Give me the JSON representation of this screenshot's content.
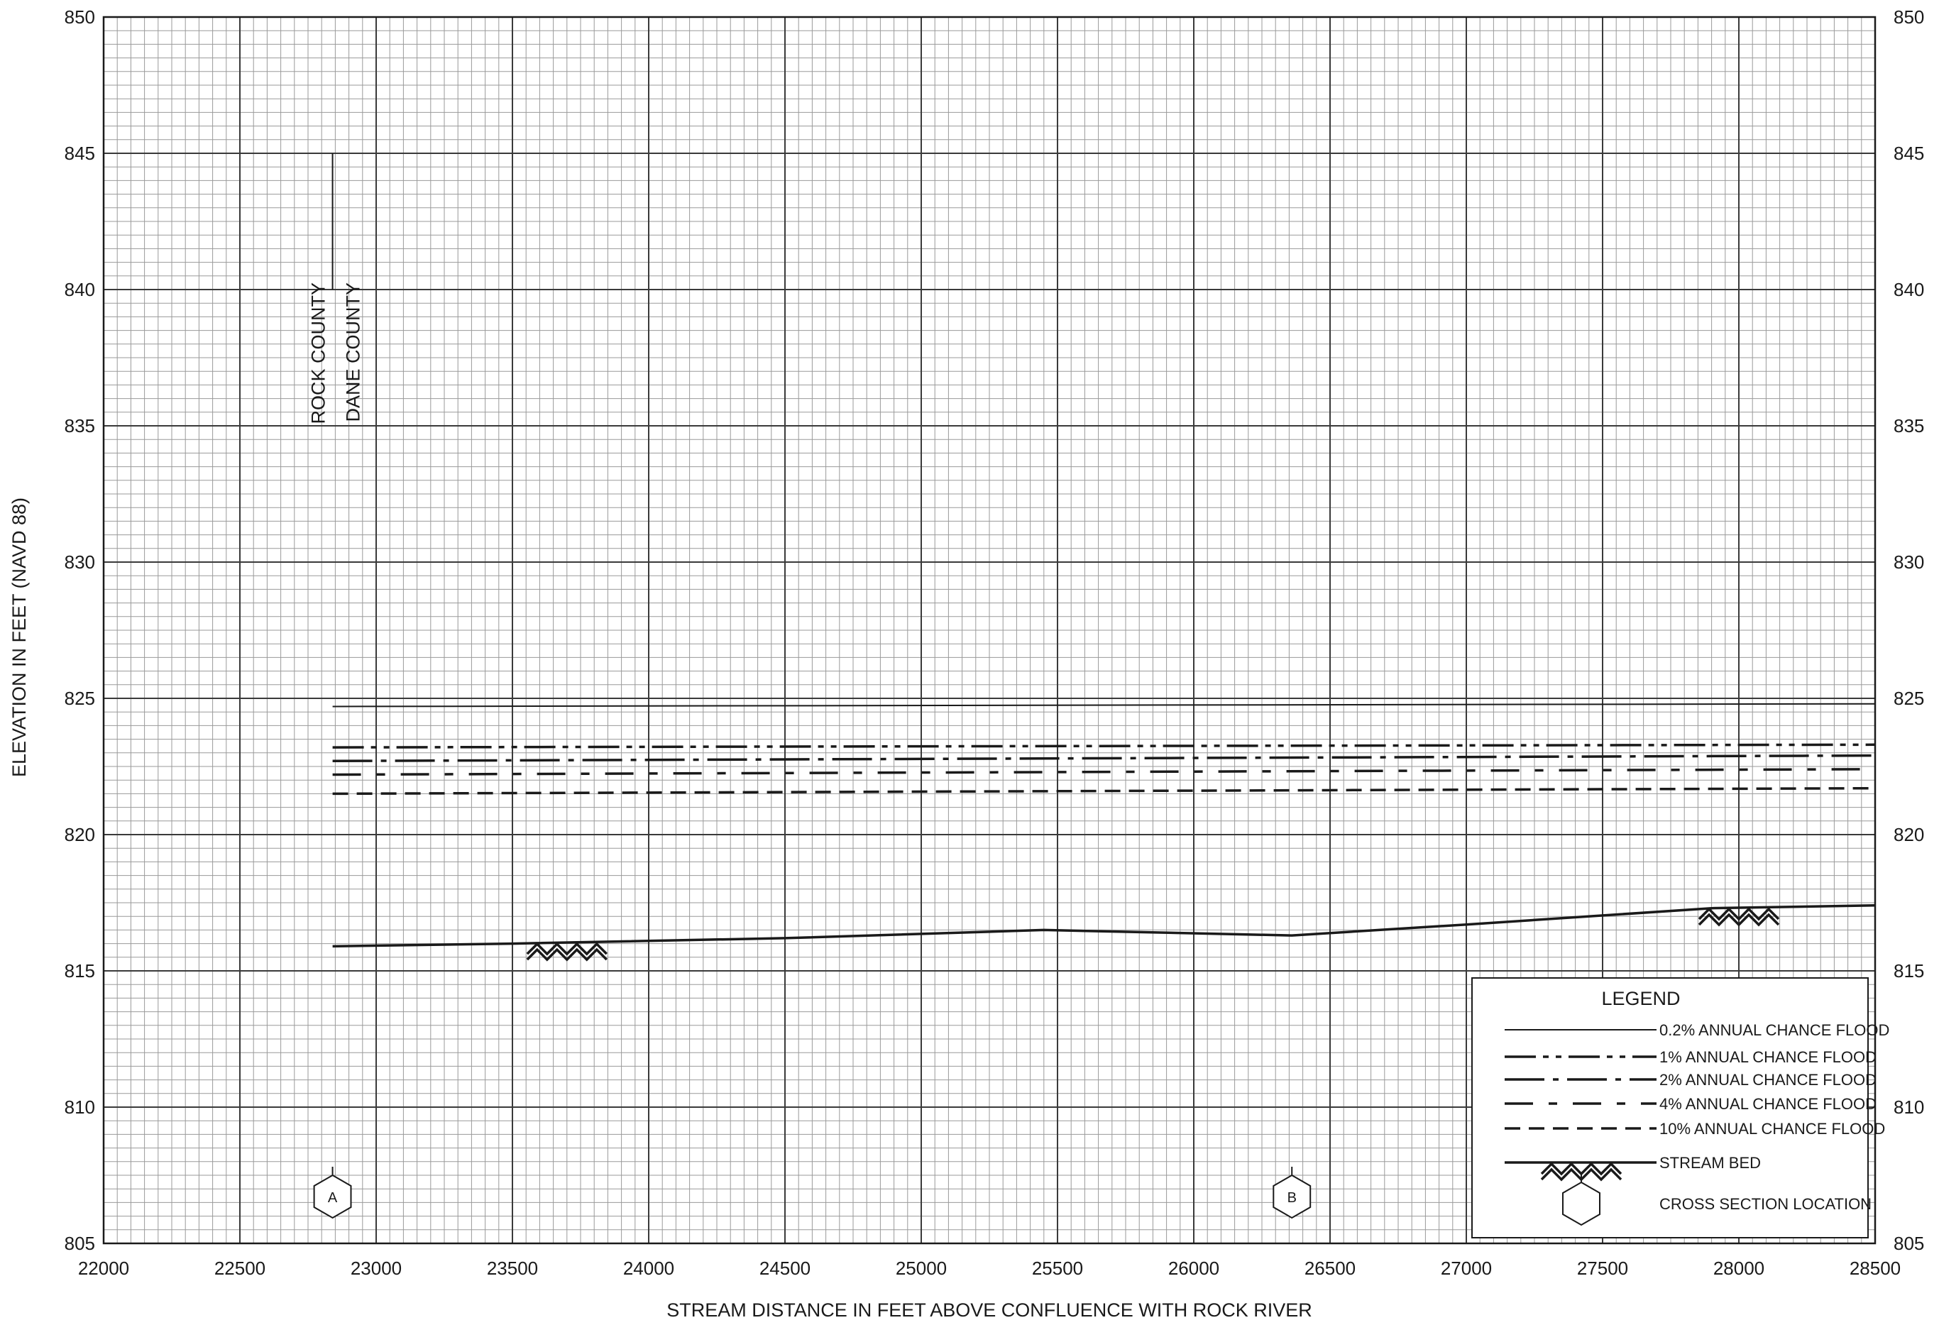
{
  "chart_data": {
    "type": "line",
    "xlabel": "STREAM DISTANCE IN FEET ABOVE CONFLUENCE WITH ROCK RIVER",
    "ylabel": "ELEVATION IN FEET (NAVD 88)",
    "xlim": [
      22000,
      28500
    ],
    "ylim": [
      805,
      850
    ],
    "x_ticks": [
      "22000",
      "22500",
      "23000",
      "23500",
      "24000",
      "24500",
      "25000",
      "25500",
      "26000",
      "26500",
      "27000",
      "27500",
      "28000",
      "28500"
    ],
    "y_ticks": [
      "805",
      "810",
      "815",
      "820",
      "825",
      "830",
      "835",
      "840",
      "845",
      "850"
    ],
    "grid": true,
    "series": [
      {
        "name": "0.2% ANNUAL CHANCE FLOOD",
        "style": "solid-thin",
        "x": [
          22840,
          28500
        ],
        "y": [
          824.7,
          824.8
        ]
      },
      {
        "name": "1% ANNUAL CHANCE FLOOD",
        "style": "dash-dot-dot",
        "x": [
          22840,
          28500
        ],
        "y": [
          823.2,
          823.3
        ]
      },
      {
        "name": "2% ANNUAL CHANCE FLOOD",
        "style": "long-dash-dot",
        "x": [
          22840,
          28500
        ],
        "y": [
          822.7,
          822.9
        ]
      },
      {
        "name": "4% ANNUAL CHANCE FLOOD",
        "style": "long-dash-short",
        "x": [
          22840,
          28500
        ],
        "y": [
          822.2,
          822.4
        ]
      },
      {
        "name": "10% ANNUAL CHANCE FLOOD",
        "style": "dashed",
        "x": [
          22840,
          28500
        ],
        "y": [
          821.5,
          821.7
        ]
      },
      {
        "name": "STREAM BED",
        "style": "solid-thick",
        "x": [
          22840,
          23500,
          24500,
          25450,
          26360,
          27000,
          27900,
          28500
        ],
        "y": [
          815.9,
          816.0,
          816.2,
          816.5,
          816.3,
          816.7,
          817.3,
          817.4
        ]
      }
    ],
    "bed_markers_x": [
      23700,
      28000
    ],
    "cross_sections": [
      {
        "label": "A",
        "x": 22840
      },
      {
        "label": "B",
        "x": 26360
      }
    ],
    "annotations": {
      "boundary_x": 22840,
      "rock_county": "ROCK COUNTY",
      "dane_county": "DANE COUNTY"
    },
    "legend": {
      "title": "LEGEND",
      "placement": "bottom-right",
      "items": [
        {
          "label": "0.2% ANNUAL CHANCE FLOOD",
          "style": "solid-thin"
        },
        {
          "label": "1% ANNUAL CHANCE FLOOD",
          "style": "dash-dot-dot"
        },
        {
          "label": "2% ANNUAL CHANCE FLOOD",
          "style": "long-dash-dot"
        },
        {
          "label": "4% ANNUAL CHANCE FLOOD",
          "style": "long-dash-short"
        },
        {
          "label": "10% ANNUAL CHANCE FLOOD",
          "style": "dashed"
        },
        {
          "label": "STREAM BED",
          "style": "solid-thick"
        },
        {
          "label": "CROSS SECTION LOCATION",
          "style": "hexagon"
        }
      ]
    },
    "colors": {
      "ink": "#1a1a1a",
      "grid_minor": "#9a9a9a",
      "grid_major": "#3a3a3a",
      "background": "#ffffff"
    }
  }
}
